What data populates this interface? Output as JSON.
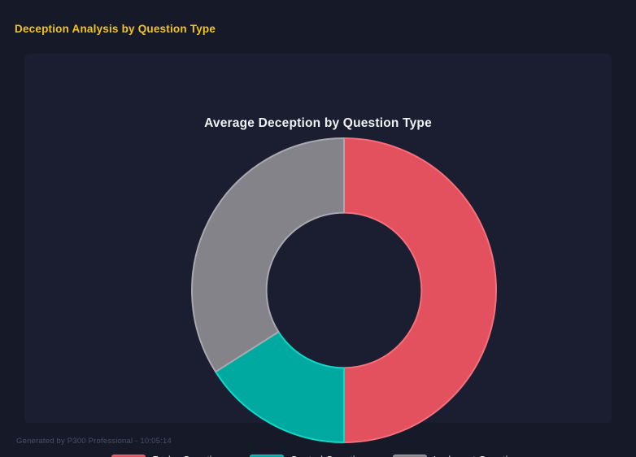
{
  "header": {
    "title": "Deception Analysis by Question Type",
    "color": "#F2C51D"
  },
  "chart_data": {
    "type": "pie",
    "variant": "donut",
    "title": "Average Deception by Question Type",
    "categories": [
      "Probe Questions",
      "Control Questions",
      "Irrelevant Questions"
    ],
    "values_percent": [
      50,
      16,
      34
    ],
    "colors": [
      "#E2515D",
      "#00A99F",
      "#84838A"
    ],
    "border_colors": [
      "#F5707C",
      "#0FD8C7",
      "#A9A8AF"
    ],
    "cutout_percent": 51,
    "start_angle_deg": 0,
    "direction": "clockwise",
    "legend_position": "bottom",
    "data_labels": "none"
  },
  "footer": {
    "note": "Generated by P300 Professional - 10:05:14"
  },
  "theme": {
    "page_background": "#161928",
    "panel_background": "#1B1E30",
    "chart_title_color": "#EFF1F5",
    "legend_text_color": "#F2F3F6",
    "footer_text_color": "#4A4E60"
  }
}
